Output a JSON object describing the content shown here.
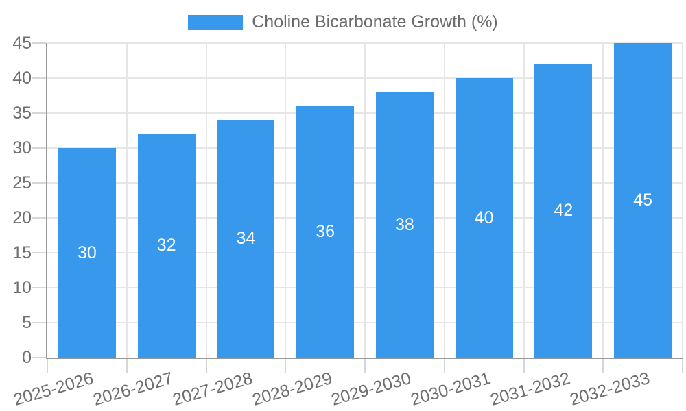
{
  "chart_data": {
    "type": "bar",
    "title": "Choline Bicarbonate Growth (%)",
    "categories": [
      "2025-2026",
      "2026-2027",
      "2027-2028",
      "2028-2029",
      "2029-2030",
      "2030-2031",
      "2031-2032",
      "2032-2033"
    ],
    "series": [
      {
        "name": "Choline Bicarbonate Growth (%)",
        "values": [
          30,
          32,
          34,
          36,
          38,
          40,
          42,
          45
        ]
      }
    ],
    "xlabel": "",
    "ylabel": "",
    "ylim": [
      0,
      45
    ],
    "yticks": [
      0,
      5,
      10,
      15,
      20,
      25,
      30,
      35,
      40,
      45
    ],
    "grid": true,
    "legend_position": "top",
    "bar_value_labels_shown": true,
    "x_label_rotation_deg": -16
  },
  "legend": {
    "label": "Choline Bicarbonate Growth (%)"
  },
  "colors": {
    "bar": "#3898EC",
    "grid": "#E6E6E6",
    "axis_line": "#999999",
    "tick": "#D6D6D6",
    "axis_text": "#6F6F6F",
    "value_text": "#FFFFFF",
    "background": "#FFFFFF"
  }
}
